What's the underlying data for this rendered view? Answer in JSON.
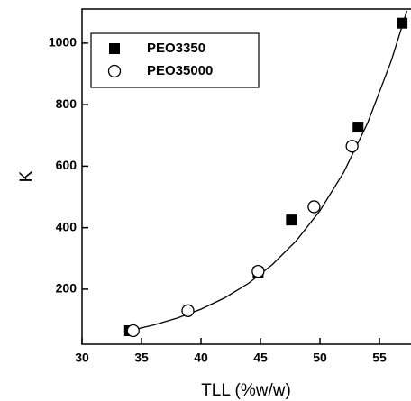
{
  "chart_data": {
    "type": "scatter",
    "xlabel": "TLL (%w/w)",
    "ylabel": "K",
    "xlim": [
      30,
      57.65
    ],
    "xticks": [
      30,
      35,
      40,
      45,
      50,
      55
    ],
    "ylim": [
      21,
      1111
    ],
    "yticks": [
      200,
      400,
      600,
      800,
      1000
    ],
    "legend": "upper left",
    "series": [
      {
        "name": "PEO3350",
        "marker": "square",
        "color": "#000000",
        "x": [
          34.0,
          44.8,
          47.6,
          53.2,
          56.9
        ],
        "values": [
          65,
          255,
          425,
          727,
          1065
        ]
      },
      {
        "name": "PEO35000",
        "marker": "circle",
        "color": "#000000",
        "x": [
          34.3,
          38.9,
          44.8,
          49.5,
          52.7
        ],
        "values": [
          65,
          130,
          258,
          468,
          665
        ]
      }
    ],
    "fit": {
      "color": "#000000",
      "x": [
        34,
        36,
        38,
        40,
        42,
        44,
        46,
        48,
        50,
        52,
        54,
        56,
        57.3
      ],
      "values": [
        65,
        83,
        106,
        135,
        172,
        219,
        280,
        357,
        455,
        580,
        740,
        943,
        1105
      ]
    }
  }
}
